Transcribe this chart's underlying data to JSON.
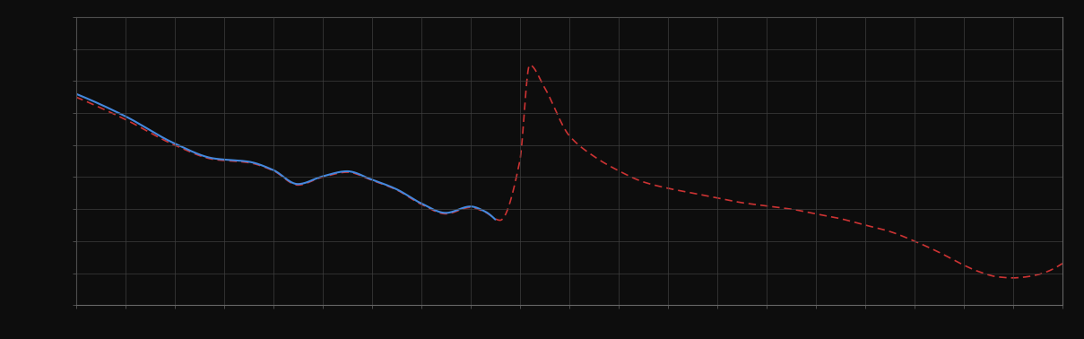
{
  "background_color": "#0d0d0d",
  "plot_bg_color": "#0d0d0d",
  "grid_color": "#404040",
  "spine_color": "#666666",
  "tick_color": "#666666",
  "line_blue_color": "#4488dd",
  "line_red_color": "#cc3333",
  "figsize": [
    12.09,
    3.78
  ],
  "dpi": 100,
  "n_xgrid": 20,
  "n_ygrid": 9
}
